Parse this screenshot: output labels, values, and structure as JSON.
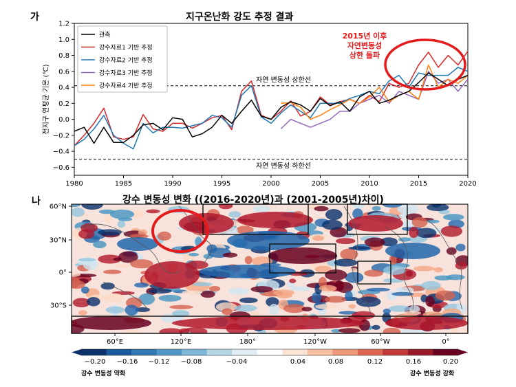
{
  "panel_a": {
    "label": "가",
    "title": "지구온난화 강도 추정 결과",
    "ylabel": "전지구 연평균 기온 (℃)",
    "upper_line_label": "자연 변동성 상한선",
    "lower_line_label": "자연 변동성 하한선",
    "annotation": [
      "2015년 이후",
      "자연변동성",
      "상한 돌파"
    ],
    "colors": {
      "obs": "#000000",
      "s1": "#d62728",
      "s2": "#1f77b4",
      "s3": "#9467bd",
      "s4": "#ff7f0e",
      "annotation": "#e41a1c"
    }
  },
  "panel_b": {
    "label": "나",
    "title": "강수 변동성 변화 ((2016-2020년)과 (2001-2005년)차이)",
    "lat_ticks": [
      "60°N",
      "30°N",
      "0°",
      "30°S"
    ],
    "lon_ticks": [
      "60°E",
      "120°E",
      "180°",
      "120°W",
      "60°W",
      "0°"
    ],
    "colorbar_ticks": [
      "−0.20",
      "−0.16",
      "−0.12",
      "−0.08",
      "−0.04",
      "0.04",
      "0.08",
      "0.12",
      "0.16",
      "0.20"
    ],
    "weaken_label": "강수 변동성 약화",
    "strengthen_label": "강수 변동성 강화"
  },
  "chart_data": [
    {
      "type": "line",
      "title": "지구온난화 강도 추정 결과",
      "ylabel": "전지구 연평균 기온 (℃)",
      "xlim": [
        1980,
        2020
      ],
      "ylim": [
        -0.7,
        1.2
      ],
      "xticks": [
        1980,
        1985,
        1990,
        1995,
        2000,
        2005,
        2010,
        2015,
        2020
      ],
      "yticks": [
        -0.6,
        -0.4,
        -0.2,
        0.0,
        0.2,
        0.4,
        0.6,
        0.8,
        1.0,
        1.2
      ],
      "hlines": [
        0.42,
        -0.5
      ],
      "legend": "top-left",
      "series": [
        {
          "name": "관측",
          "start": 1980,
          "values": [
            -0.15,
            -0.1,
            -0.3,
            -0.1,
            -0.29,
            -0.29,
            -0.2,
            -0.07,
            -0.05,
            -0.13,
            0.02,
            0.0,
            -0.22,
            -0.18,
            -0.1,
            0.05,
            -0.05,
            0.1,
            0.24,
            0.04,
            0.0,
            0.15,
            0.22,
            0.18,
            0.1,
            0.26,
            0.17,
            0.22,
            0.1,
            0.28,
            0.35,
            0.2,
            0.24,
            0.3,
            0.35,
            0.46,
            0.58,
            0.5,
            0.42,
            0.5,
            0.55
          ]
        },
        {
          "name": "강수자료1 기반 추정",
          "start": 1980,
          "values": [
            -0.33,
            -0.2,
            -0.05,
            0.14,
            -0.22,
            -0.25,
            -0.22,
            0.06,
            -0.12,
            -0.15,
            -0.05,
            -0.05,
            -0.11,
            -0.05,
            0.02,
            0.05,
            -0.13,
            0.35,
            0.48,
            0.05,
            0.0,
            0.1,
            0.23,
            0.04,
            0.1,
            0.28,
            0.18,
            0.22,
            0.25,
            0.2,
            0.3,
            0.22,
            0.45,
            0.4,
            0.45,
            0.68,
            0.84,
            0.65,
            0.8,
            0.68,
            0.85
          ]
        },
        {
          "name": "강수자료2 기반 추정",
          "start": 1980,
          "values": [
            -0.33,
            -0.25,
            -0.12,
            0.05,
            -0.2,
            -0.3,
            -0.37,
            -0.05,
            -0.17,
            -0.1,
            -0.1,
            -0.11,
            -0.08,
            -0.05,
            0.05,
            0.02,
            -0.1,
            0.3,
            0.42,
            0.03,
            -0.05,
            0.08,
            0.18,
            0.1,
            0.02,
            0.2,
            0.2,
            0.2,
            0.26,
            0.3,
            0.35,
            0.32,
            0.48,
            0.55,
            0.4,
            0.58,
            0.55,
            0.55,
            0.55,
            0.65,
            0.6
          ]
        },
        {
          "name": "강수자료3 기반 추정",
          "start": 2001,
          "values": [
            -0.12,
            0.0,
            -0.05,
            -0.1,
            -0.05,
            0.0,
            0.1,
            0.1,
            0.2,
            0.25,
            0.3,
            0.2,
            0.35,
            0.3,
            0.25,
            0.6,
            0.45,
            0.5,
            0.35,
            0.5
          ]
        },
        {
          "name": "강수자료4 기반 추정",
          "start": 2001,
          "values": [
            0.2,
            0.21,
            0.15,
            0.0,
            0.05,
            0.12,
            0.18,
            0.25,
            0.2,
            0.28,
            0.4,
            0.22,
            0.3,
            0.35,
            0.25,
            0.68,
            0.4,
            0.5,
            0.45,
            0.55
          ]
        }
      ]
    },
    {
      "type": "heatmap",
      "title": "강수 변동성 변화 ((2016-2020년)과 (2001-2005년)차이)",
      "colorbar_range": [
        -0.2,
        0.2
      ],
      "colorbar_labels": [
        "강수 변동성 약화",
        "강수 변동성 강화"
      ]
    }
  ]
}
